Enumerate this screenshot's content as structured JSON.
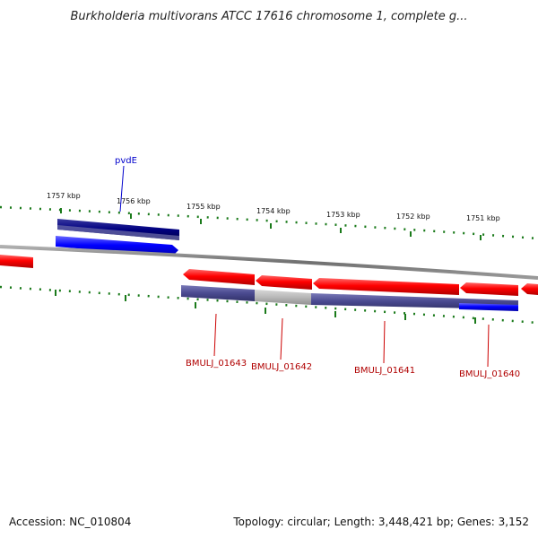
{
  "title": "Burkholderia multivorans ATCC 17616 chromosome 1, complete g...",
  "footer": {
    "accession": "Accession: NC_010804",
    "topology": "Topology: circular; Length: 3,448,421 bp; Genes: 3,152"
  },
  "scale": {
    "ticks": [
      {
        "label": "1757 kbp"
      },
      {
        "label": "1756 kbp"
      },
      {
        "label": "1755 kbp"
      },
      {
        "label": "1754 kbp"
      },
      {
        "label": "1753 kbp"
      },
      {
        "label": "1752 kbp"
      },
      {
        "label": "1751 kbp"
      }
    ]
  },
  "genes": {
    "pvdE": "pvdE",
    "g1643": "BMULJ_01643",
    "g1642": "BMULJ_01642",
    "g1641": "BMULJ_01641",
    "g1640": "BMULJ_01640"
  },
  "colors": {
    "forward_cds": "#0000ff",
    "reverse_cds": "#ff0000",
    "forward_match": "#000080",
    "reverse_match": "#4a4a90",
    "backbone": "#808080",
    "ticks": "#1a7a1a"
  }
}
